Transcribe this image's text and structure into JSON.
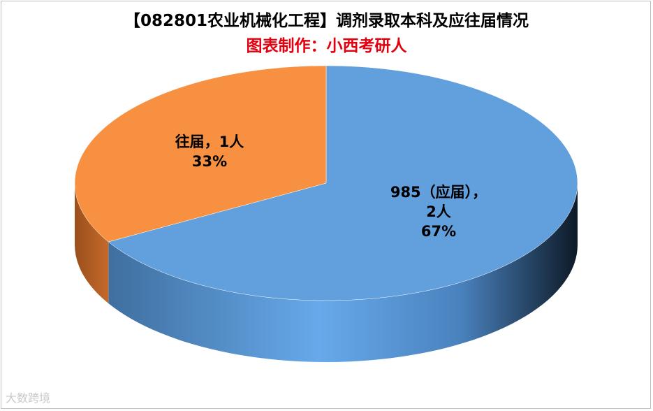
{
  "chart_data": {
    "type": "pie",
    "title": "【082801农业机械化工程】调剂录取本科及应往届情况",
    "subtitle": "图表制作：小西考研人",
    "slices": [
      {
        "label": "985（应届），",
        "count_text": "2人",
        "percent_text": "67%",
        "value": 2,
        "color": "#629fdd"
      },
      {
        "label": "往届，",
        "count_text": "1人",
        "percent_text": "33%",
        "value": 1,
        "color": "#f79141"
      }
    ],
    "style": "3d"
  },
  "watermark": "大数跨境"
}
